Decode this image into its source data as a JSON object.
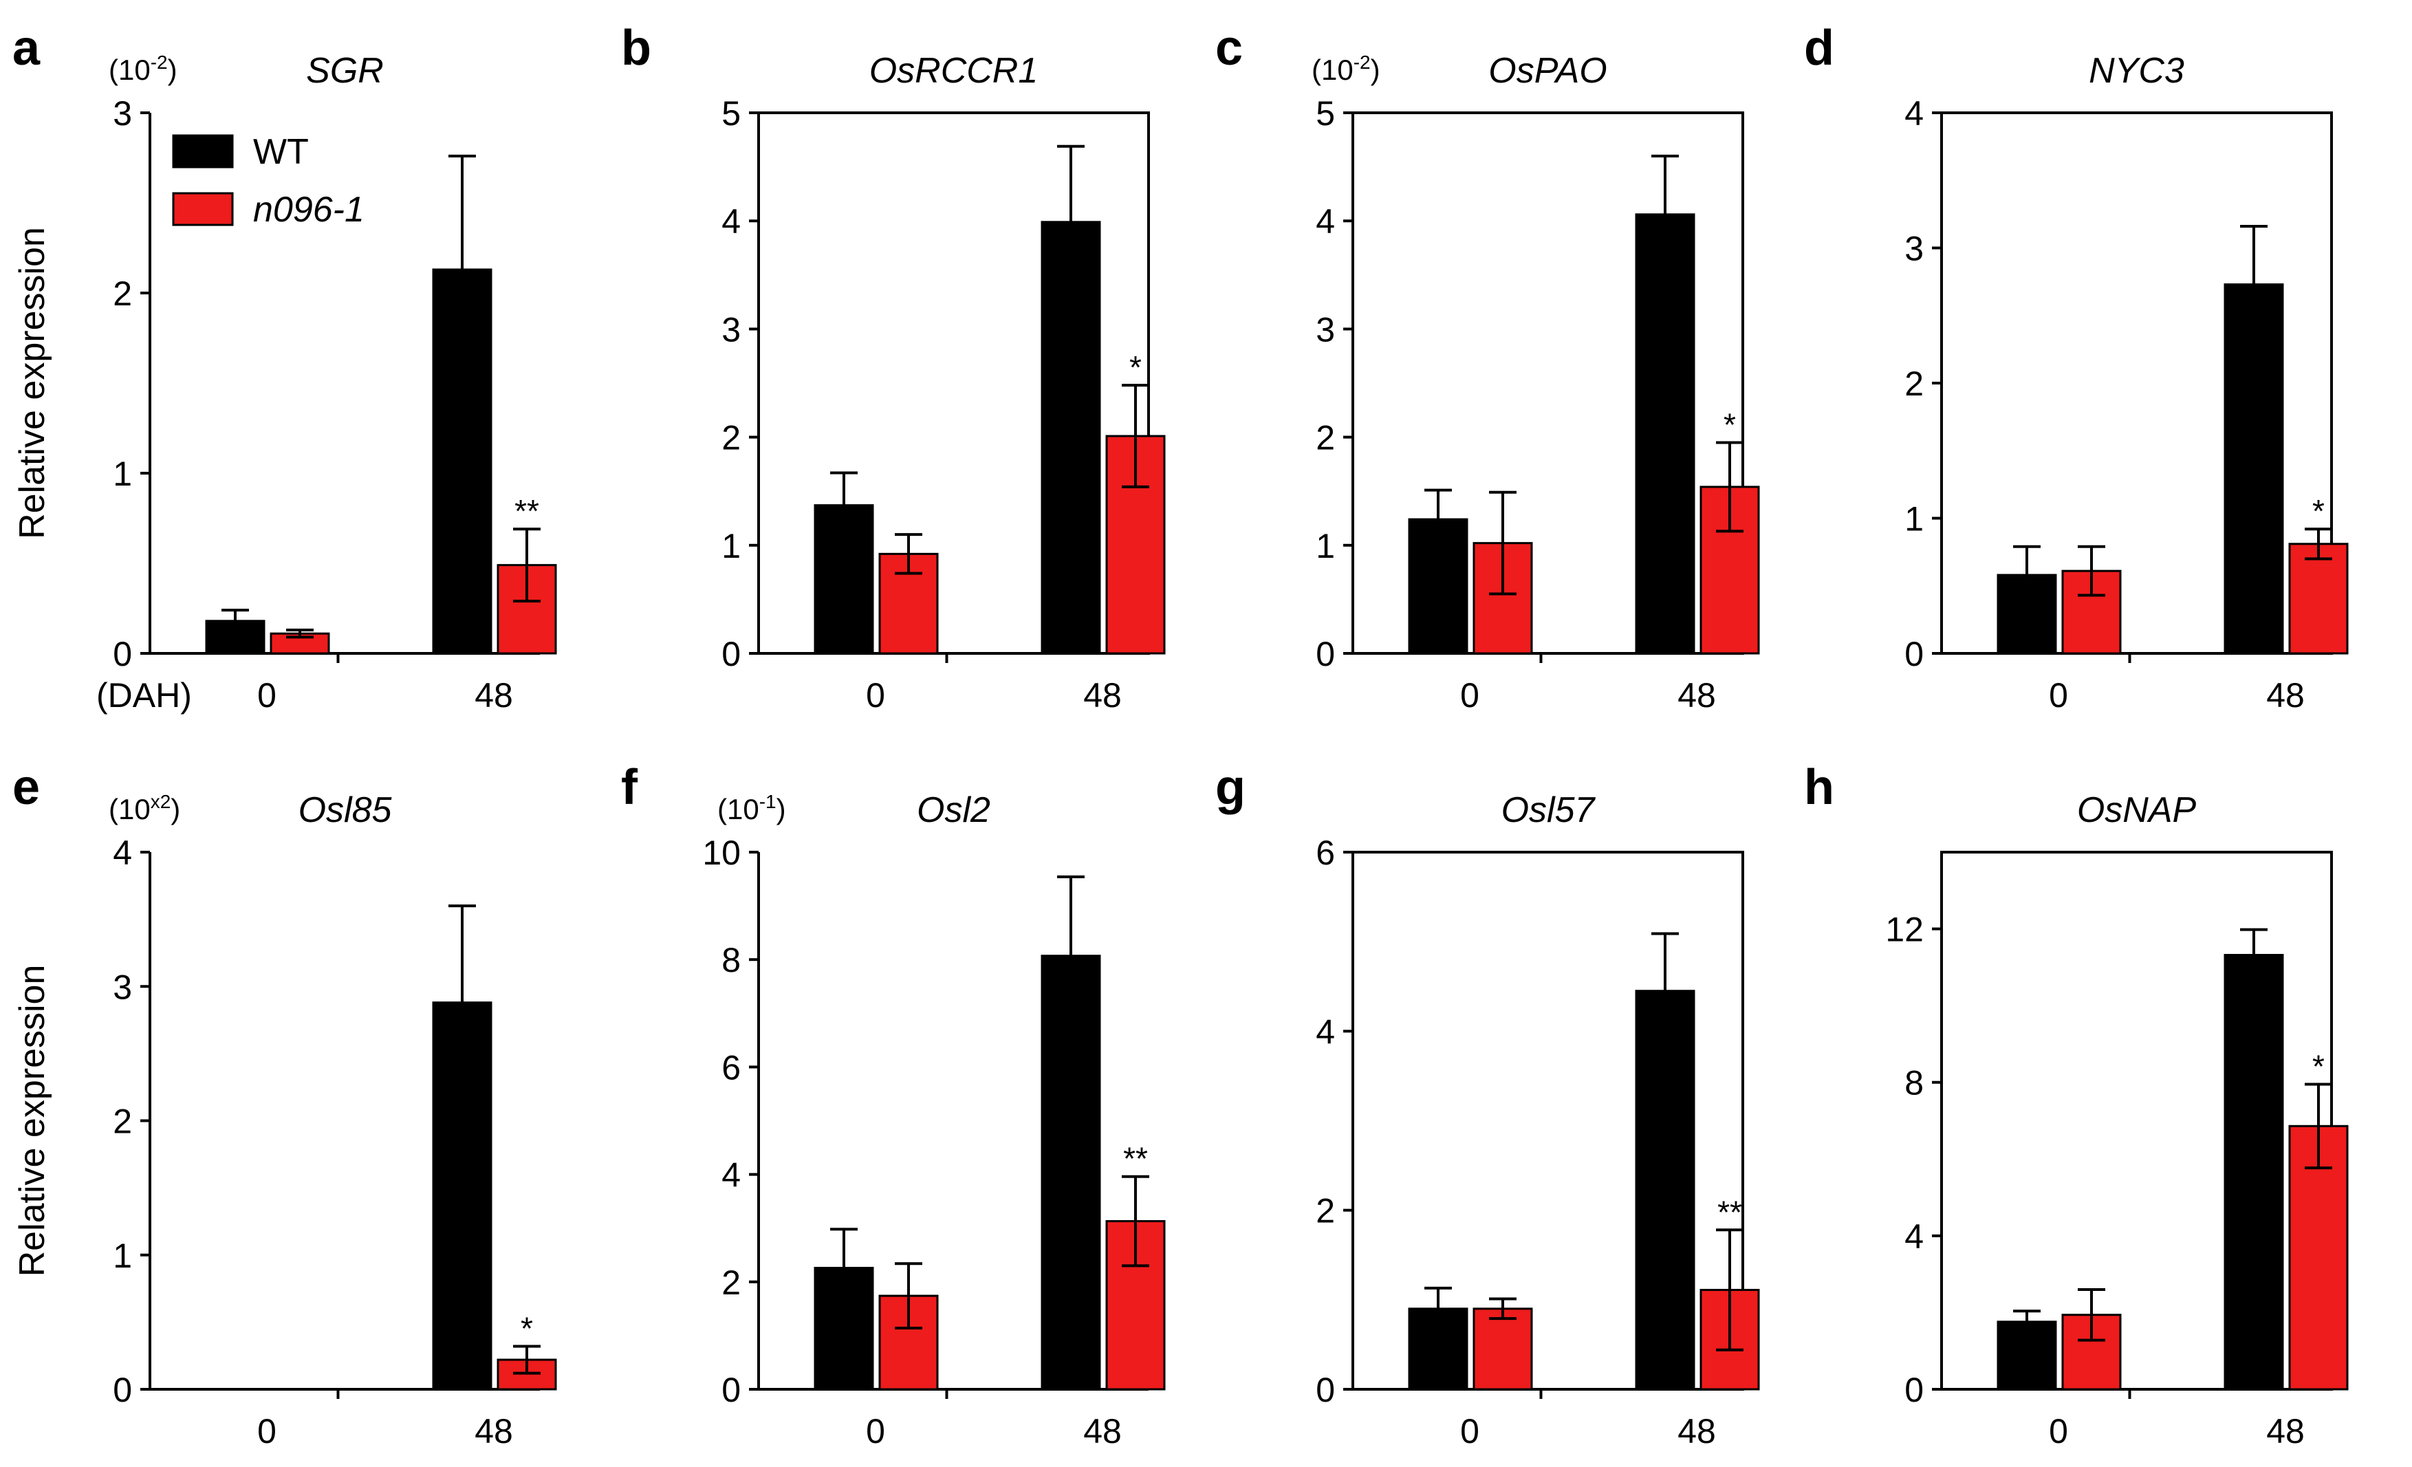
{
  "colors": {
    "wt": "#000000",
    "mutant": "#ee1c1c"
  },
  "legend": {
    "wt_label": "WT",
    "mutant_label": "n096-1"
  },
  "shared": {
    "ylabel": "Relative expression",
    "xunit_label": "(DAH)"
  },
  "chart_data": [
    {
      "type": "bar",
      "letter": "a",
      "title": "SGR",
      "scale_base": "(10",
      "scale_exp": "-2",
      "scale_close": ")",
      "categories": [
        "0",
        "48"
      ],
      "yticks": [
        "0",
        "1",
        "2",
        "3"
      ],
      "ylim": [
        0,
        3
      ],
      "series": [
        {
          "name": "WT",
          "values": [
            0.18,
            2.13
          ],
          "errors": [
            0.06,
            0.63
          ]
        },
        {
          "name": "n096-1",
          "values": [
            0.11,
            0.49
          ],
          "errors": [
            0.02,
            0.2
          ]
        }
      ],
      "significance": [
        "",
        "**"
      ]
    },
    {
      "type": "bar",
      "letter": "b",
      "title": "OsRCCR1",
      "categories": [
        "0",
        "48"
      ],
      "yticks": [
        "0",
        "1",
        "2",
        "3",
        "4",
        "5"
      ],
      "ylim": [
        0,
        5
      ],
      "series": [
        {
          "name": "WT",
          "values": [
            1.37,
            3.99
          ],
          "errors": [
            0.3,
            0.7
          ]
        },
        {
          "name": "n096-1",
          "values": [
            0.92,
            2.01
          ],
          "errors": [
            0.18,
            0.47
          ]
        }
      ],
      "significance": [
        "",
        "*"
      ]
    },
    {
      "type": "bar",
      "letter": "c",
      "title": "OsPAO",
      "scale_base": "(10",
      "scale_exp": "-2",
      "scale_close": ")",
      "categories": [
        "0",
        "48"
      ],
      "yticks": [
        "0",
        "1",
        "2",
        "3",
        "4",
        "5"
      ],
      "ylim": [
        0,
        5
      ],
      "series": [
        {
          "name": "WT",
          "values": [
            1.24,
            4.06
          ],
          "errors": [
            0.27,
            0.54
          ]
        },
        {
          "name": "n096-1",
          "values": [
            1.02,
            1.54
          ],
          "errors": [
            0.47,
            0.41
          ]
        }
      ],
      "significance": [
        "",
        "*"
      ]
    },
    {
      "type": "bar",
      "letter": "d",
      "title": "NYC3",
      "categories": [
        "0",
        "48"
      ],
      "yticks": [
        "0",
        "1",
        "2",
        "3",
        "4"
      ],
      "ylim": [
        0,
        4
      ],
      "series": [
        {
          "name": "WT",
          "values": [
            0.58,
            2.73
          ],
          "errors": [
            0.21,
            0.43
          ]
        },
        {
          "name": "n096-1",
          "values": [
            0.61,
            0.81
          ],
          "errors": [
            0.18,
            0.11
          ]
        }
      ],
      "significance": [
        "",
        "*"
      ]
    },
    {
      "type": "bar",
      "letter": "e",
      "title": "Osl85",
      "scale_base": "(10",
      "scale_exp": "x2",
      "scale_close": ")",
      "categories": [
        "0",
        "48"
      ],
      "yticks": [
        "0",
        "1",
        "2",
        "3",
        "4"
      ],
      "ylim": [
        0,
        4
      ],
      "series": [
        {
          "name": "WT",
          "values": [
            0.0,
            2.88
          ],
          "errors": [
            0.0,
            0.72
          ]
        },
        {
          "name": "n096-1",
          "values": [
            0.0,
            0.22
          ],
          "errors": [
            0.0,
            0.1
          ]
        }
      ],
      "significance": [
        "",
        "*"
      ]
    },
    {
      "type": "bar",
      "letter": "f",
      "title": "Osl2",
      "scale_base": "(10",
      "scale_exp": "-1",
      "scale_close": ")",
      "categories": [
        "0",
        "48"
      ],
      "yticks": [
        "0",
        "2",
        "4",
        "6",
        "8",
        "10"
      ],
      "ylim": [
        0,
        10
      ],
      "series": [
        {
          "name": "WT",
          "values": [
            2.26,
            8.07
          ],
          "errors": [
            0.72,
            1.47
          ]
        },
        {
          "name": "n096-1",
          "values": [
            1.74,
            3.13
          ],
          "errors": [
            0.6,
            0.83
          ]
        }
      ],
      "significance": [
        "",
        "**"
      ]
    },
    {
      "type": "bar",
      "letter": "g",
      "title": "Osl57",
      "categories": [
        "0",
        "48"
      ],
      "yticks": [
        "0",
        "2",
        "4",
        "6"
      ],
      "ylim": [
        0,
        6
      ],
      "series": [
        {
          "name": "WT",
          "values": [
            0.9,
            4.45
          ],
          "errors": [
            0.23,
            0.64
          ]
        },
        {
          "name": "n096-1",
          "values": [
            0.9,
            1.11
          ],
          "errors": [
            0.11,
            0.67
          ]
        }
      ],
      "significance": [
        "",
        "**"
      ]
    },
    {
      "type": "bar",
      "letter": "h",
      "title": "OsNAP",
      "categories": [
        "0",
        "48"
      ],
      "yticks": [
        "0",
        "4",
        "8",
        "12"
      ],
      "ylim": [
        0,
        14
      ],
      "series": [
        {
          "name": "WT",
          "values": [
            1.76,
            11.32
          ],
          "errors": [
            0.28,
            0.66
          ]
        },
        {
          "name": "n096-1",
          "values": [
            1.94,
            6.86
          ],
          "errors": [
            0.66,
            1.09
          ]
        }
      ],
      "significance": [
        "",
        "*"
      ]
    }
  ]
}
